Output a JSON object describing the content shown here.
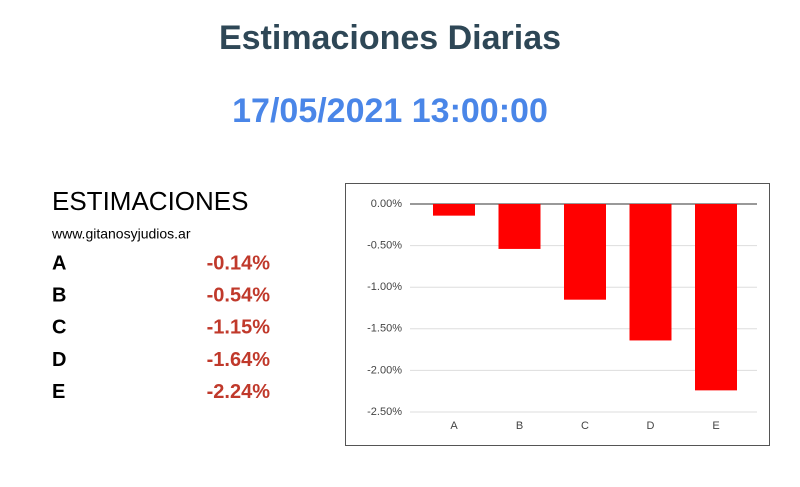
{
  "header": {
    "title": "Estimaciones Diarias",
    "datetime": "17/05/2021 13:00:00"
  },
  "table": {
    "title": "ESTIMACIONES",
    "source": "www.gitanosyjudios.ar",
    "rows": [
      [
        "A",
        "-0.14%"
      ],
      [
        "B",
        "-0.54%"
      ],
      [
        "C",
        "-1.15%"
      ],
      [
        "D",
        "-1.64%"
      ],
      [
        "E",
        "-2.24%"
      ]
    ]
  },
  "chart_data": {
    "type": "bar",
    "categories": [
      "A",
      "B",
      "C",
      "D",
      "E"
    ],
    "values": [
      -0.14,
      -0.54,
      -1.15,
      -1.64,
      -2.24
    ],
    "color": "#ff0000",
    "ylim": [
      -2.5,
      0
    ],
    "yticks": [
      {
        "value": 0,
        "label": "0.00%"
      },
      {
        "value": -0.5,
        "label": "-0.50%"
      },
      {
        "value": -1,
        "label": "-1.00%"
      },
      {
        "value": -1.5,
        "label": "-1.50%"
      },
      {
        "value": -2,
        "label": "-2.00%"
      },
      {
        "value": -2.5,
        "label": "-2.50%"
      }
    ],
    "grid": true
  }
}
